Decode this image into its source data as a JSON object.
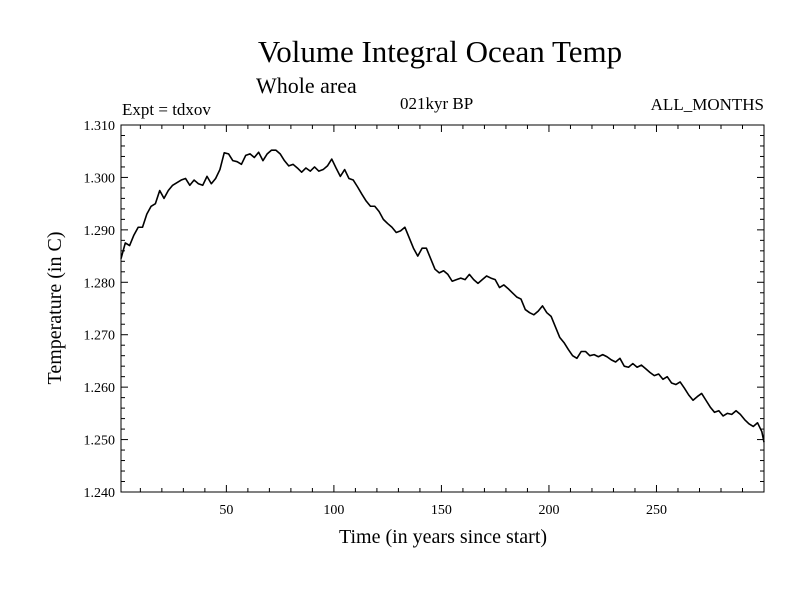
{
  "chart_data": {
    "type": "line",
    "title": "Volume Integral Ocean Temp",
    "subtitle": "Whole area",
    "annotations": {
      "experiment": "Expt = tdxov",
      "period": "021kyr BP",
      "months": "ALL_MONTHS"
    },
    "xlabel": "Time (in years since start)",
    "ylabel": "Temperature (in C)",
    "xlim": [
      1,
      300
    ],
    "ylim": [
      1.24,
      1.31
    ],
    "x_ticks": [
      50,
      100,
      150,
      200,
      250
    ],
    "x_tick_labels": [
      "50",
      "100",
      "150",
      "200",
      "250"
    ],
    "y_ticks": [
      1.24,
      1.25,
      1.26,
      1.27,
      1.28,
      1.29,
      1.3,
      1.31
    ],
    "y_tick_labels": [
      "1.240",
      "1.250",
      "1.260",
      "1.270",
      "1.280",
      "1.290",
      "1.300",
      "1.310"
    ],
    "grid": false,
    "series": [
      {
        "x": [
          1,
          3,
          5,
          7,
          9,
          11,
          13,
          15,
          17,
          19,
          21,
          23,
          25,
          27,
          29,
          31,
          33,
          35,
          37,
          39,
          41,
          43,
          45,
          47,
          49,
          51,
          53,
          55,
          57,
          59,
          61,
          63,
          65,
          67,
          69,
          71,
          73,
          75,
          77,
          79,
          81,
          83,
          85,
          87,
          89,
          91,
          93,
          95,
          97,
          99,
          101,
          103,
          105,
          107,
          109,
          111,
          113,
          115,
          117,
          119,
          121,
          123,
          125,
          127,
          129,
          131,
          133,
          135,
          137,
          139,
          141,
          143,
          145,
          147,
          149,
          151,
          153,
          155,
          157,
          159,
          161,
          163,
          165,
          167,
          169,
          171,
          173,
          175,
          177,
          179,
          181,
          183,
          185,
          187,
          189,
          191,
          193,
          195,
          197,
          199,
          201,
          203,
          205,
          207,
          209,
          211,
          213,
          215,
          217,
          219,
          221,
          223,
          225,
          227,
          229,
          231,
          233,
          235,
          237,
          239,
          241,
          243,
          245,
          247,
          249,
          251,
          253,
          255,
          257,
          259,
          261,
          263,
          265,
          267,
          269,
          271,
          273,
          275,
          277,
          279,
          281,
          283,
          285,
          287,
          289,
          291,
          293,
          295,
          297,
          299,
          300
        ],
        "values": [
          1.2845,
          1.2875,
          1.287,
          1.289,
          1.2905,
          1.2905,
          1.293,
          1.2945,
          1.295,
          1.2975,
          1.296,
          1.2975,
          1.2985,
          1.299,
          1.2995,
          1.2998,
          1.2985,
          1.2995,
          1.2988,
          1.2985,
          1.3002,
          1.2988,
          1.2998,
          1.3015,
          1.3047,
          1.3045,
          1.3032,
          1.303,
          1.3025,
          1.3042,
          1.3045,
          1.3038,
          1.3048,
          1.3032,
          1.3045,
          1.3052,
          1.3052,
          1.3045,
          1.3032,
          1.3022,
          1.3025,
          1.3018,
          1.301,
          1.3018,
          1.3012,
          1.302,
          1.3012,
          1.3015,
          1.3022,
          1.3035,
          1.3018,
          1.3002,
          1.3015,
          1.2998,
          1.2995,
          1.2982,
          1.2968,
          1.2955,
          1.2945,
          1.2945,
          1.2935,
          1.292,
          1.2912,
          1.2905,
          1.2895,
          1.2898,
          1.2905,
          1.2885,
          1.2865,
          1.285,
          1.2865,
          1.2865,
          1.2845,
          1.2825,
          1.2818,
          1.2822,
          1.2815,
          1.2802,
          1.2805,
          1.2808,
          1.2805,
          1.2815,
          1.2805,
          1.2798,
          1.2805,
          1.2812,
          1.2808,
          1.2805,
          1.279,
          1.2795,
          1.2788,
          1.278,
          1.2772,
          1.2768,
          1.2748,
          1.2742,
          1.2738,
          1.2745,
          1.2755,
          1.2742,
          1.2735,
          1.2715,
          1.2695,
          1.2685,
          1.2672,
          1.266,
          1.2655,
          1.2668,
          1.2668,
          1.266,
          1.2662,
          1.2658,
          1.2662,
          1.2658,
          1.2652,
          1.2648,
          1.2655,
          1.264,
          1.2638,
          1.2645,
          1.2638,
          1.2642,
          1.2635,
          1.2628,
          1.2622,
          1.2625,
          1.2615,
          1.262,
          1.2608,
          1.2605,
          1.261,
          1.2598,
          1.2585,
          1.2575,
          1.2582,
          1.2588,
          1.2575,
          1.2562,
          1.2552,
          1.2555,
          1.2545,
          1.255,
          1.2548,
          1.2555,
          1.2548,
          1.2538,
          1.253,
          1.2525,
          1.2532,
          1.2515,
          1.2495
        ]
      }
    ]
  }
}
